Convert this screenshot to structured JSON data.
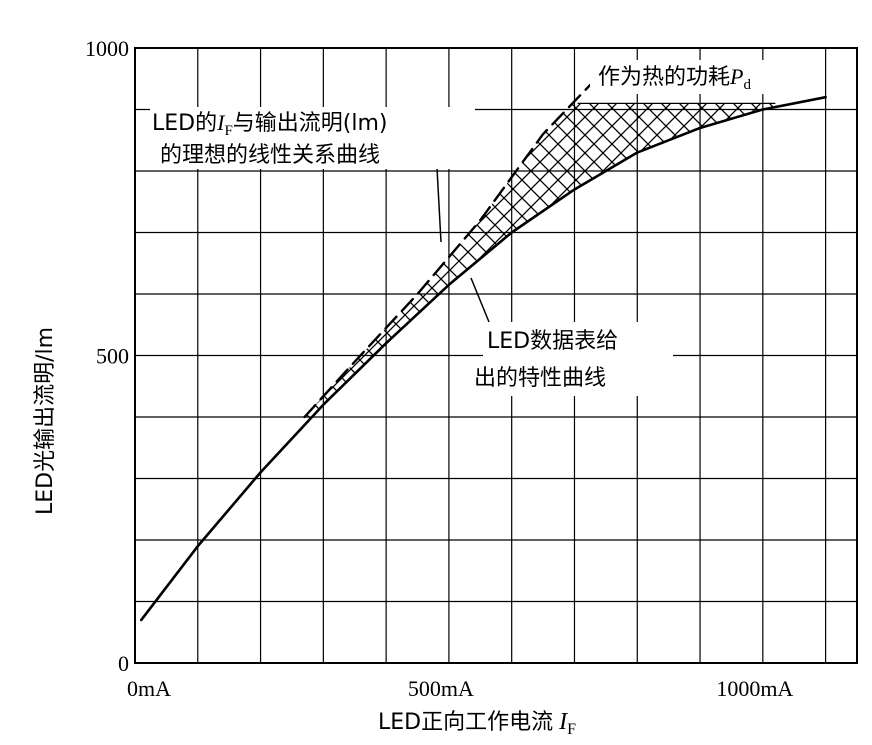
{
  "header_fragment": "………………………………………………………………",
  "chart_data": {
    "type": "line",
    "title": "",
    "xlabel": "LED正向工作电流",
    "xlabel_symbol": "I",
    "xlabel_subscript": "F",
    "ylabel": "LED光输出流明/lm",
    "xlim": [
      0,
      1150
    ],
    "ylim": [
      0,
      1000
    ],
    "x_ticks": [
      {
        "value": 0,
        "label": "0mA"
      },
      {
        "value": 500,
        "label": "500mA"
      },
      {
        "value": 1000,
        "label": "1000mA"
      }
    ],
    "y_ticks": [
      {
        "value": 0,
        "label": "0"
      },
      {
        "value": 500,
        "label": "500"
      },
      {
        "value": 1000,
        "label": "1000"
      }
    ],
    "grid": true,
    "grid_step_x": 100,
    "grid_step_y": 100,
    "series": [
      {
        "name": "",
        "style": "solid",
        "x": [
          10,
          100,
          200,
          300,
          400,
          500,
          600,
          700,
          800,
          900,
          1000,
          1100
        ],
        "y": [
          70,
          190,
          310,
          420,
          520,
          615,
          700,
          770,
          830,
          870,
          900,
          920
        ]
      },
      {
        "name": "",
        "style": "dashed",
        "x": [
          270,
          350,
          450,
          550,
          650,
          725
        ],
        "y": [
          400,
          490,
          600,
          720,
          860,
          940
        ]
      }
    ],
    "hatched_region": {
      "x_from": 270,
      "x_to": 1020,
      "cap": 910
    },
    "annotations": [
      {
        "id": "ideal",
        "lines": [
          {
            "pre": "LED的",
            "sym": "I",
            "sub": "F",
            "post": "与输出流明(lm)"
          },
          {
            "pre": "的理想的线性关系曲线",
            "sym": "",
            "sub": "",
            "post": ""
          }
        ]
      },
      {
        "id": "heat",
        "lines": [
          {
            "pre": "作为热的功耗",
            "sym": "P",
            "sub": "d",
            "post": ""
          }
        ]
      },
      {
        "id": "datasheet",
        "lines": [
          {
            "pre": "LED数据表给",
            "sym": "",
            "sub": "",
            "post": ""
          },
          {
            "pre": "出的特性曲线",
            "sym": "",
            "sub": "",
            "post": ""
          }
        ]
      }
    ]
  }
}
